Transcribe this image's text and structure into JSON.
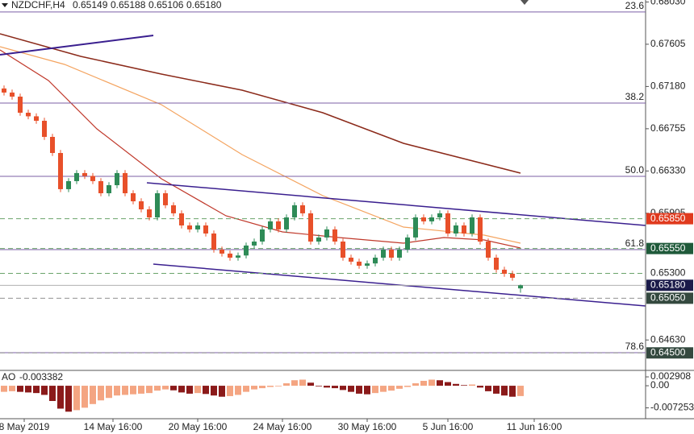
{
  "header": {
    "symbol": "NZDCHF,H4",
    "ohlc_labels": [
      "0.65149",
      "0.65188",
      "0.65106",
      "0.65180"
    ]
  },
  "chart_data": {
    "type": "candlestick",
    "ylim": [
      0.64324,
      0.6805
    ],
    "yticks": [
      {
        "value": 0.6803,
        "label": "0.68030"
      },
      0.67605,
      {
        "value": 0.6718,
        "label": "0.67180"
      },
      0.66755,
      {
        "value": 0.6633,
        "label": "0.66330"
      },
      0.65905,
      {
        "value": 0.6463,
        "label": "0.64630"
      }
    ],
    "up_color": "#2e8b57",
    "down_color": "#e8502a",
    "candles": {
      "open": [
        0.6716,
        0.67119,
        0.67078,
        0.66916,
        0.6688,
        0.66835,
        0.66673,
        0.66511,
        0.66147,
        0.66228,
        0.66309,
        0.6628,
        0.66228,
        0.66106,
        0.66187,
        0.66309,
        0.66106,
        0.66025,
        0.65944,
        0.65863,
        0.66106,
        0.65985,
        0.65904,
        0.65782,
        0.65742,
        0.65782,
        0.65701,
        0.65539,
        0.65499,
        0.65458,
        0.6548,
        0.6558,
        0.6562,
        0.65742,
        0.65823,
        0.65742,
        0.65863,
        0.65985,
        0.65904,
        0.6562,
        0.65661,
        0.65742,
        0.6562,
        0.65458,
        0.65418,
        0.65377,
        0.654,
        0.65458,
        0.65539,
        0.65458,
        0.65539,
        0.65661,
        0.65863,
        0.65823,
        0.65863,
        0.65904,
        0.65701,
        0.65782,
        0.65701,
        0.65863,
        0.6562,
        0.65458,
        0.65337,
        0.65296,
        0.65149
      ],
      "high": [
        0.6719,
        0.67149,
        0.67108,
        0.66946,
        0.6691,
        0.66865,
        0.66703,
        0.66541,
        0.66258,
        0.66339,
        0.66339,
        0.6631,
        0.66258,
        0.66217,
        0.66339,
        0.66339,
        0.66136,
        0.66055,
        0.65974,
        0.66136,
        0.66136,
        0.66015,
        0.65934,
        0.65812,
        0.65812,
        0.65812,
        0.65731,
        0.65569,
        0.65529,
        0.6551,
        0.6561,
        0.6565,
        0.65772,
        0.65853,
        0.65853,
        0.65893,
        0.66015,
        0.66015,
        0.65934,
        0.65691,
        0.65772,
        0.65772,
        0.6565,
        0.65488,
        0.65448,
        0.6543,
        0.65488,
        0.65569,
        0.65569,
        0.65569,
        0.65691,
        0.65893,
        0.65893,
        0.65893,
        0.65934,
        0.65934,
        0.65812,
        0.65812,
        0.65893,
        0.65893,
        0.6565,
        0.65488,
        0.65367,
        0.65326,
        0.65188
      ],
      "low": [
        0.67089,
        0.67048,
        0.66886,
        0.6685,
        0.66805,
        0.66643,
        0.66481,
        0.66117,
        0.66117,
        0.66198,
        0.6625,
        0.66198,
        0.66076,
        0.66076,
        0.66157,
        0.66076,
        0.65995,
        0.65914,
        0.65833,
        0.65833,
        0.65955,
        0.65874,
        0.65752,
        0.65712,
        0.65712,
        0.65671,
        0.65509,
        0.65469,
        0.65428,
        0.65428,
        0.6545,
        0.6555,
        0.6559,
        0.65712,
        0.65712,
        0.65712,
        0.65833,
        0.65874,
        0.6559,
        0.6559,
        0.65631,
        0.6559,
        0.65428,
        0.65388,
        0.65347,
        0.65347,
        0.6537,
        0.65428,
        0.65428,
        0.65428,
        0.65509,
        0.65631,
        0.65793,
        0.65793,
        0.65833,
        0.65671,
        0.65671,
        0.65671,
        0.65671,
        0.6559,
        0.65428,
        0.65307,
        0.65266,
        0.65226,
        0.65106
      ],
      "close": [
        0.67119,
        0.67078,
        0.66916,
        0.6688,
        0.66835,
        0.66673,
        0.66511,
        0.66147,
        0.66228,
        0.66309,
        0.6628,
        0.66228,
        0.66106,
        0.66187,
        0.66309,
        0.66106,
        0.66025,
        0.65944,
        0.65863,
        0.66106,
        0.65985,
        0.65904,
        0.65782,
        0.65742,
        0.65782,
        0.65701,
        0.65539,
        0.65499,
        0.65458,
        0.6548,
        0.6558,
        0.6562,
        0.65742,
        0.65823,
        0.65742,
        0.65863,
        0.65985,
        0.65904,
        0.6562,
        0.65661,
        0.65742,
        0.6562,
        0.65458,
        0.65418,
        0.65377,
        0.654,
        0.65458,
        0.65539,
        0.65458,
        0.65539,
        0.65661,
        0.65863,
        0.65823,
        0.65863,
        0.65904,
        0.65701,
        0.65782,
        0.65701,
        0.65863,
        0.6562,
        0.65458,
        0.65337,
        0.65296,
        0.65256,
        0.6518
      ]
    },
    "x_labels": [
      "8 May 2019",
      "14 May 16:00",
      "20 May 16:00",
      "24 May 16:00",
      "30 May 16:00",
      "5 Jun 16:00",
      "11 Jun 16:00"
    ],
    "fib": {
      "levels": [
        23.6,
        38.2,
        {
          "value": 50,
          "label": "50.0"
        },
        61.8,
        78.6
      ],
      "prices": [
        0.6793,
        0.67013,
        0.66276,
        0.65539,
        0.64502
      ],
      "color": "#7b5fa6"
    },
    "price_tags": [
      {
        "value": 0.6585,
        "label": "0.65850",
        "color": "#e03a1e",
        "line_color": "#6aa36a"
      },
      {
        "value": 0.6555,
        "label": "0.65550",
        "color": "#1f5a3a",
        "line_color": "#6aa36a"
      },
      {
        "value": 0.653,
        "label": "0.65300",
        "line_color": "#6aa36a"
      },
      {
        "value": 0.6518,
        "label": "0.65180",
        "color": "#1b1b4a",
        "line_color": "#b0b0b0"
      },
      {
        "value": 0.6505,
        "label": "0.65050",
        "color": "#34493f",
        "line_color": "#909090"
      },
      {
        "value": 0.645,
        "label": "0.64500",
        "color": "#34493f",
        "line_color": "#909090"
      }
    ],
    "ao": {
      "name": "AO",
      "ylim": [
        -0.0108,
        0.0045
      ],
      "yticks": [
        0.002908,
        {
          "value": 0,
          "label": "0.00"
        },
        -0.007253
      ],
      "rise_color": "#f4a582",
      "fall_color": "#8b1a1a",
      "values": [
        -0.002,
        -0.0018,
        -0.002,
        -0.0022,
        -0.0024,
        -0.003,
        -0.005,
        -0.0075,
        -0.0085,
        -0.008,
        -0.0072,
        -0.006,
        -0.0048,
        -0.004,
        -0.0032,
        -0.003,
        -0.0028,
        -0.0026,
        -0.0024,
        -0.0016,
        -0.0012,
        -0.0015,
        -0.0022,
        -0.0026,
        -0.0024,
        -0.0027,
        -0.0032,
        -0.0036,
        -0.0034,
        -0.003,
        -0.002,
        -0.0012,
        -0.0008,
        -0.0004,
        -0.0002,
        0.0008,
        0.0018,
        0.002,
        0.001,
        -0.0002,
        -0.0006,
        -0.0008,
        -0.0014,
        -0.002,
        -0.0026,
        -0.0028,
        -0.0024,
        -0.002,
        -0.0016,
        -0.001,
        -0.0004,
        0.0008,
        0.0016,
        0.002,
        0.0018,
        0.0012,
        0.0006,
        0.0002,
        0.0004,
        -0.0006,
        -0.0018,
        -0.0026,
        -0.0032,
        -0.0036,
        -0.003382
      ]
    }
  }
}
